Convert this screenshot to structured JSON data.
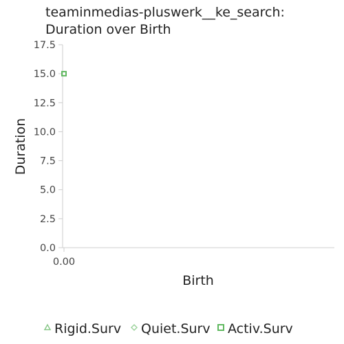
{
  "chart_data": {
    "type": "scatter",
    "title_lines": [
      "teaminmedias-pluswerk__ke_search:",
      "Duration over Birth"
    ],
    "xlabel": "Birth",
    "ylabel": "Duration",
    "ylim": [
      0,
      17.5
    ],
    "y_ticks": [
      "0.0",
      "2.5",
      "5.0",
      "7.5",
      "10.0",
      "12.5",
      "15.0",
      "17.5"
    ],
    "y_tick_values": [
      0,
      2.5,
      5,
      7.5,
      10,
      12.5,
      15,
      17.5
    ],
    "x_ticks": [
      "0.00"
    ],
    "x_tick_values": [
      0
    ],
    "grid": false,
    "legend_position": "bottom",
    "series": [
      {
        "name": "Rigid.Surv",
        "marker": "triangle",
        "color": "#8bc98b",
        "x": [],
        "y": []
      },
      {
        "name": "Quiet.Surv",
        "marker": "diamond",
        "color": "#9fd49f",
        "x": [],
        "y": []
      },
      {
        "name": "Activ.Surv",
        "marker": "square",
        "color": "#5fb85f",
        "x": [
          0
        ],
        "y": [
          15
        ]
      }
    ]
  }
}
